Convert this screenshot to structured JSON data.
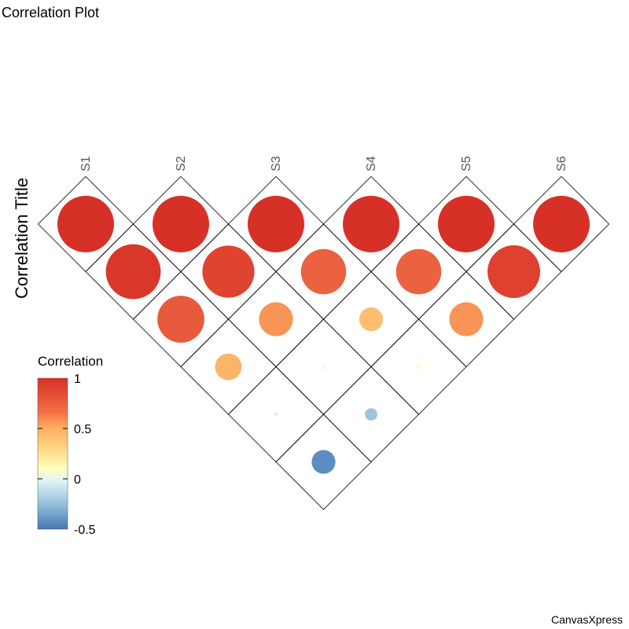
{
  "title": "Correlation Plot",
  "brand": "CanvasXpress",
  "chart_data": {
    "type": "heatmap",
    "subtype": "correlation-triangle",
    "title": "Correlation Plot",
    "ylabel": "Correlation Title",
    "variables": [
      "S1",
      "S2",
      "S3",
      "S4",
      "S5",
      "S6"
    ],
    "matrix": [
      [
        1,
        0.97,
        0.83,
        0.47,
        -0.05,
        -0.42
      ],
      [
        0.97,
        1,
        0.92,
        0.6,
        0.08,
        -0.22
      ],
      [
        0.83,
        0.92,
        1,
        0.8,
        0.42,
        0.08
      ],
      [
        0.47,
        0.6,
        0.8,
        1,
        0.8,
        0.6
      ],
      [
        -0.05,
        0.08,
        0.42,
        0.8,
        1,
        0.93
      ],
      [
        -0.42,
        -0.22,
        0.08,
        0.6,
        0.93,
        1
      ]
    ],
    "legend": {
      "title": "Correlation",
      "ticks": [
        "1",
        "0.5",
        "0",
        "-0.5"
      ],
      "tick_values": [
        1,
        0.5,
        0,
        -0.5
      ],
      "range": [
        -0.5,
        1
      ],
      "position": "left"
    },
    "colors": {
      "high": "#d73027",
      "mid_high": "#fdae61",
      "mid": "#ffffbf",
      "mid_low": "#e0f3f8",
      "low": "#4575b4"
    }
  }
}
